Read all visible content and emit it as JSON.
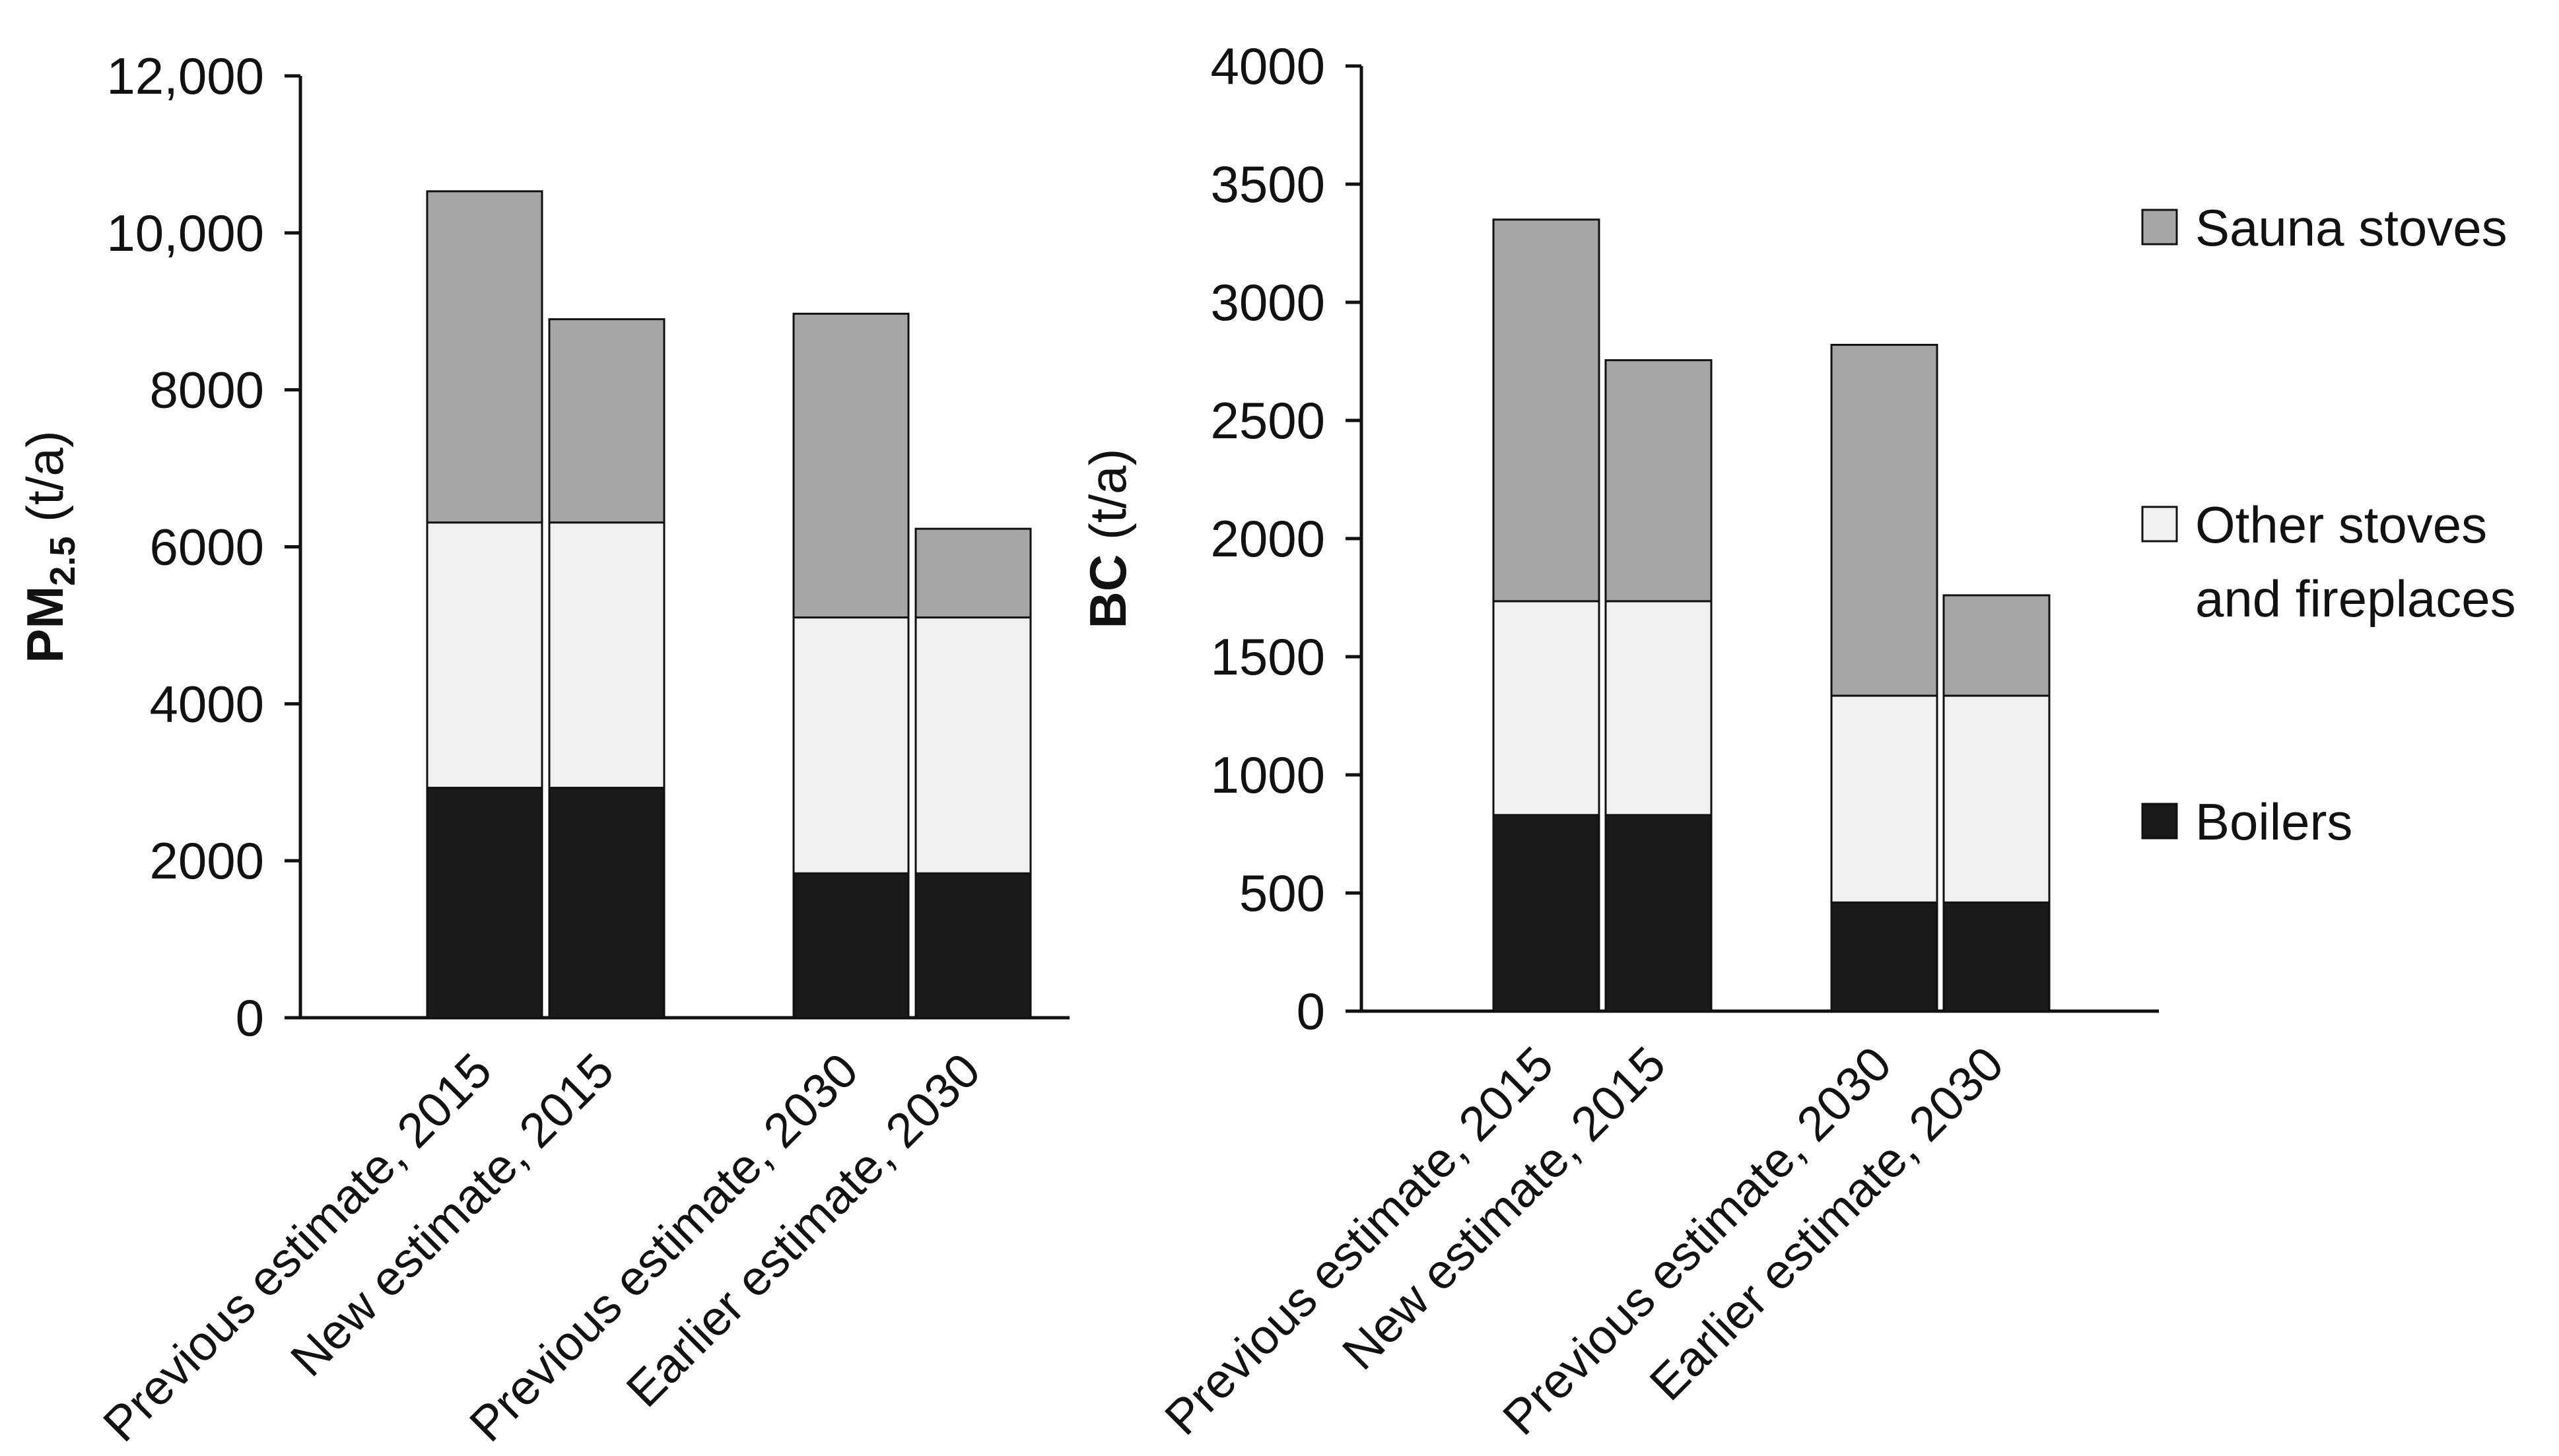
{
  "chart_data": [
    {
      "type": "bar",
      "stacked": true,
      "categories": [
        "Previous estimate, 2015",
        "New estimate, 2015",
        "Previous estimate, 2030",
        "Earlier estimate, 2030"
      ],
      "series": [
        {
          "name": "Boilers",
          "values": [
            2930,
            2930,
            1840,
            1840
          ]
        },
        {
          "name": "Other stoves and fireplaces",
          "values": [
            3380,
            3380,
            3260,
            3260
          ]
        },
        {
          "name": "Sauna stoves",
          "values": [
            4220,
            2590,
            3870,
            1130
          ]
        }
      ],
      "ylabel": {
        "main": "PM",
        "sub": "2.5",
        "unit": " (t/a)"
      },
      "ylim": [
        0,
        12000
      ],
      "yticks": [
        0,
        2000,
        4000,
        6000,
        8000,
        10000,
        12000
      ],
      "ytick_labels": [
        "0",
        "2000",
        "4000",
        "6000",
        "8000",
        "10,000",
        "12,000"
      ]
    },
    {
      "type": "bar",
      "stacked": true,
      "categories": [
        "Previous estimate, 2015",
        "New estimate, 2015",
        "Previous estimate, 2030",
        "Earlier estimate, 2030"
      ],
      "series": [
        {
          "name": "Boilers",
          "values": [
            830,
            830,
            460,
            460
          ]
        },
        {
          "name": "Other stoves and fireplaces",
          "values": [
            905,
            905,
            875,
            875
          ]
        },
        {
          "name": "Sauna stoves",
          "values": [
            1615,
            1020,
            1485,
            425
          ]
        }
      ],
      "ylabel": {
        "main": "BC",
        "sub": "",
        "unit": " (t/a)"
      },
      "ylim": [
        0,
        4000
      ],
      "yticks": [
        0,
        500,
        1000,
        1500,
        2000,
        2500,
        3000,
        3500,
        4000
      ],
      "ytick_labels": [
        "0",
        "500",
        "1000",
        "1500",
        "2000",
        "2500",
        "3000",
        "3500",
        "4000"
      ]
    }
  ],
  "legend": [
    {
      "name": "Sauna stoves",
      "lines": [
        "Sauna stoves"
      ]
    },
    {
      "name": "Other stoves and fireplaces",
      "lines": [
        "Other stoves",
        "and fireplaces"
      ]
    },
    {
      "name": "Boilers",
      "lines": [
        "Boilers"
      ]
    }
  ],
  "colors": {
    "Boilers": "#1a1a1a",
    "Other stoves and fireplaces": "#f0f0f0",
    "Sauna stoves": "#a6a6a6",
    "axis": "#111111"
  }
}
